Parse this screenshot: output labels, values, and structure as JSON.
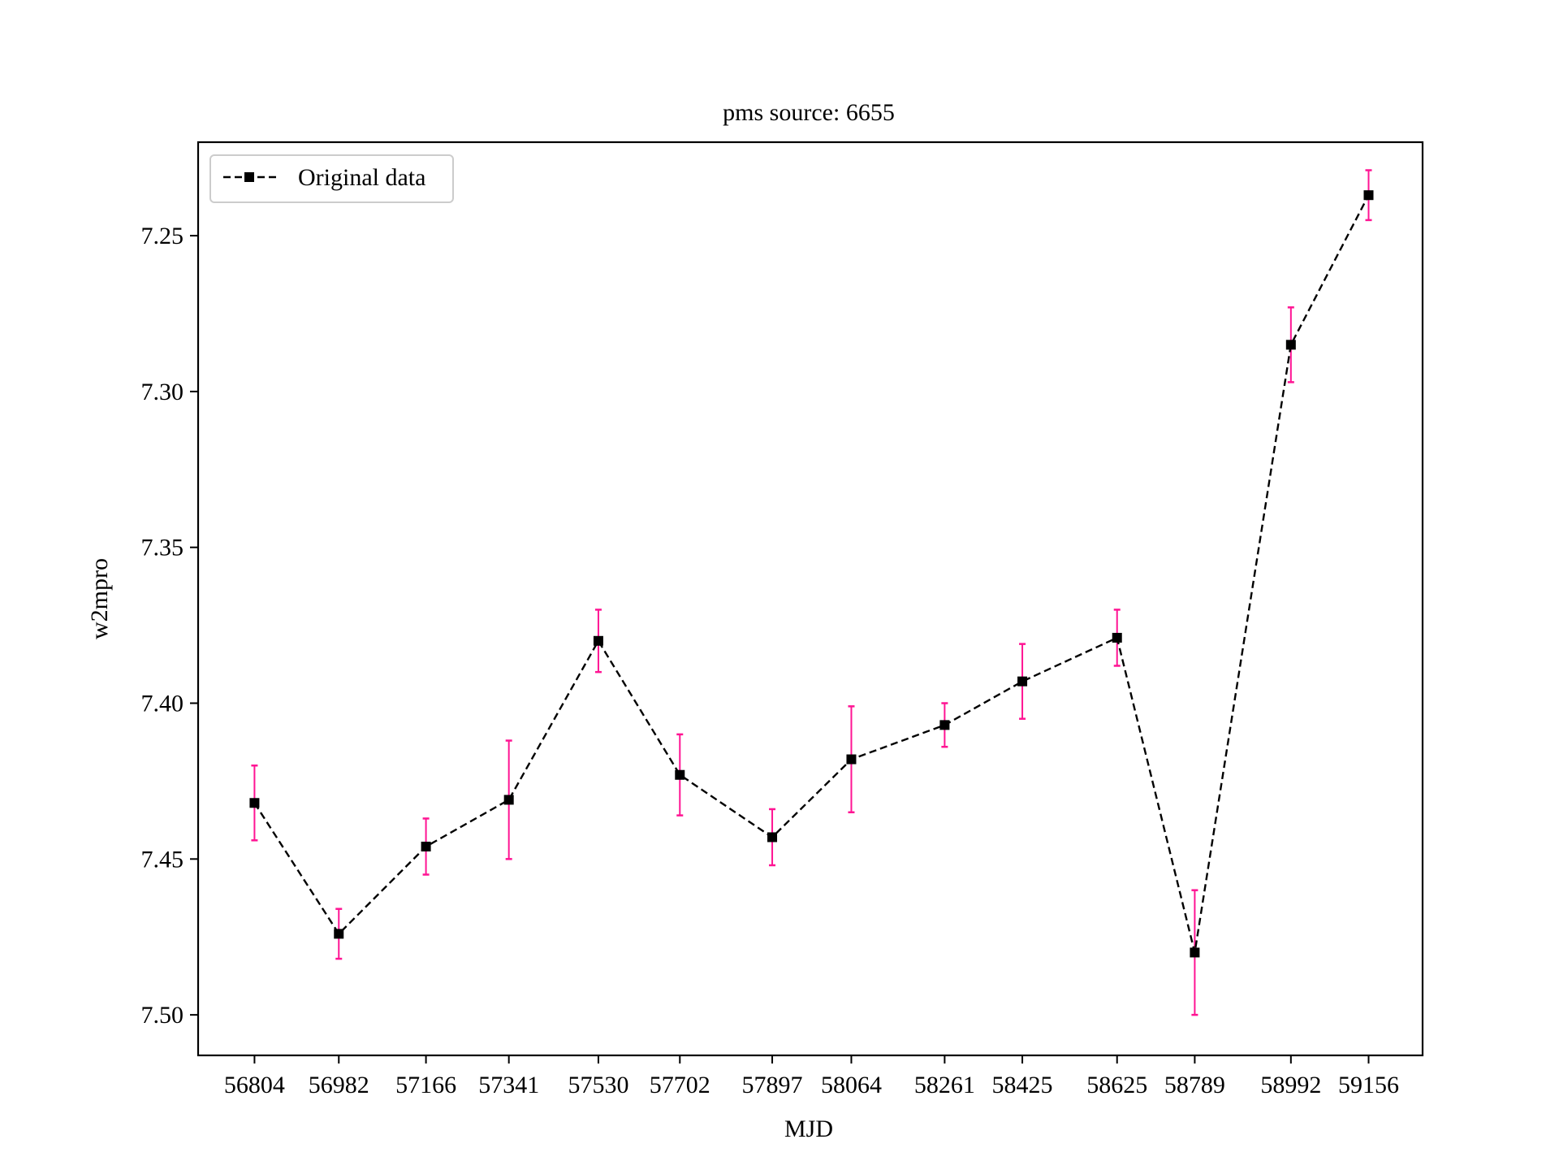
{
  "chart_data": {
    "type": "line",
    "title": "pms source: 6655",
    "xlabel": "MJD",
    "ylabel": "w2mpro",
    "y_inverted": true,
    "ylim": [
      7.513,
      7.22
    ],
    "yticks": [
      "7.25",
      "7.30",
      "7.35",
      "7.40",
      "7.45",
      "7.50"
    ],
    "ytick_values": [
      7.25,
      7.3,
      7.35,
      7.4,
      7.45,
      7.5
    ],
    "x": [
      56804,
      56982,
      57166,
      57341,
      57530,
      57702,
      57897,
      58064,
      58261,
      58425,
      58625,
      58789,
      58992,
      59156
    ],
    "xlim": [
      56685,
      59270
    ],
    "xtick_labels": [
      "56804",
      "56982",
      "57166",
      "57341",
      "57530",
      "57702",
      "57897",
      "58064",
      "58261",
      "58425",
      "58625",
      "58789",
      "58992",
      "59156"
    ],
    "grid": false,
    "legend_position": "top-left",
    "series": [
      {
        "name": "Original data",
        "line_style": "dashed",
        "marker": "square",
        "color": "#000000",
        "values": [
          7.432,
          7.474,
          7.446,
          7.431,
          7.38,
          7.423,
          7.443,
          7.418,
          7.407,
          7.393,
          7.379,
          7.48,
          7.285,
          7.237
        ],
        "errors": [
          0.012,
          0.008,
          0.009,
          0.019,
          0.01,
          0.013,
          0.009,
          0.017,
          0.007,
          0.012,
          0.009,
          0.02,
          0.012,
          0.008
        ],
        "error_color": "#ff1493"
      }
    ]
  }
}
